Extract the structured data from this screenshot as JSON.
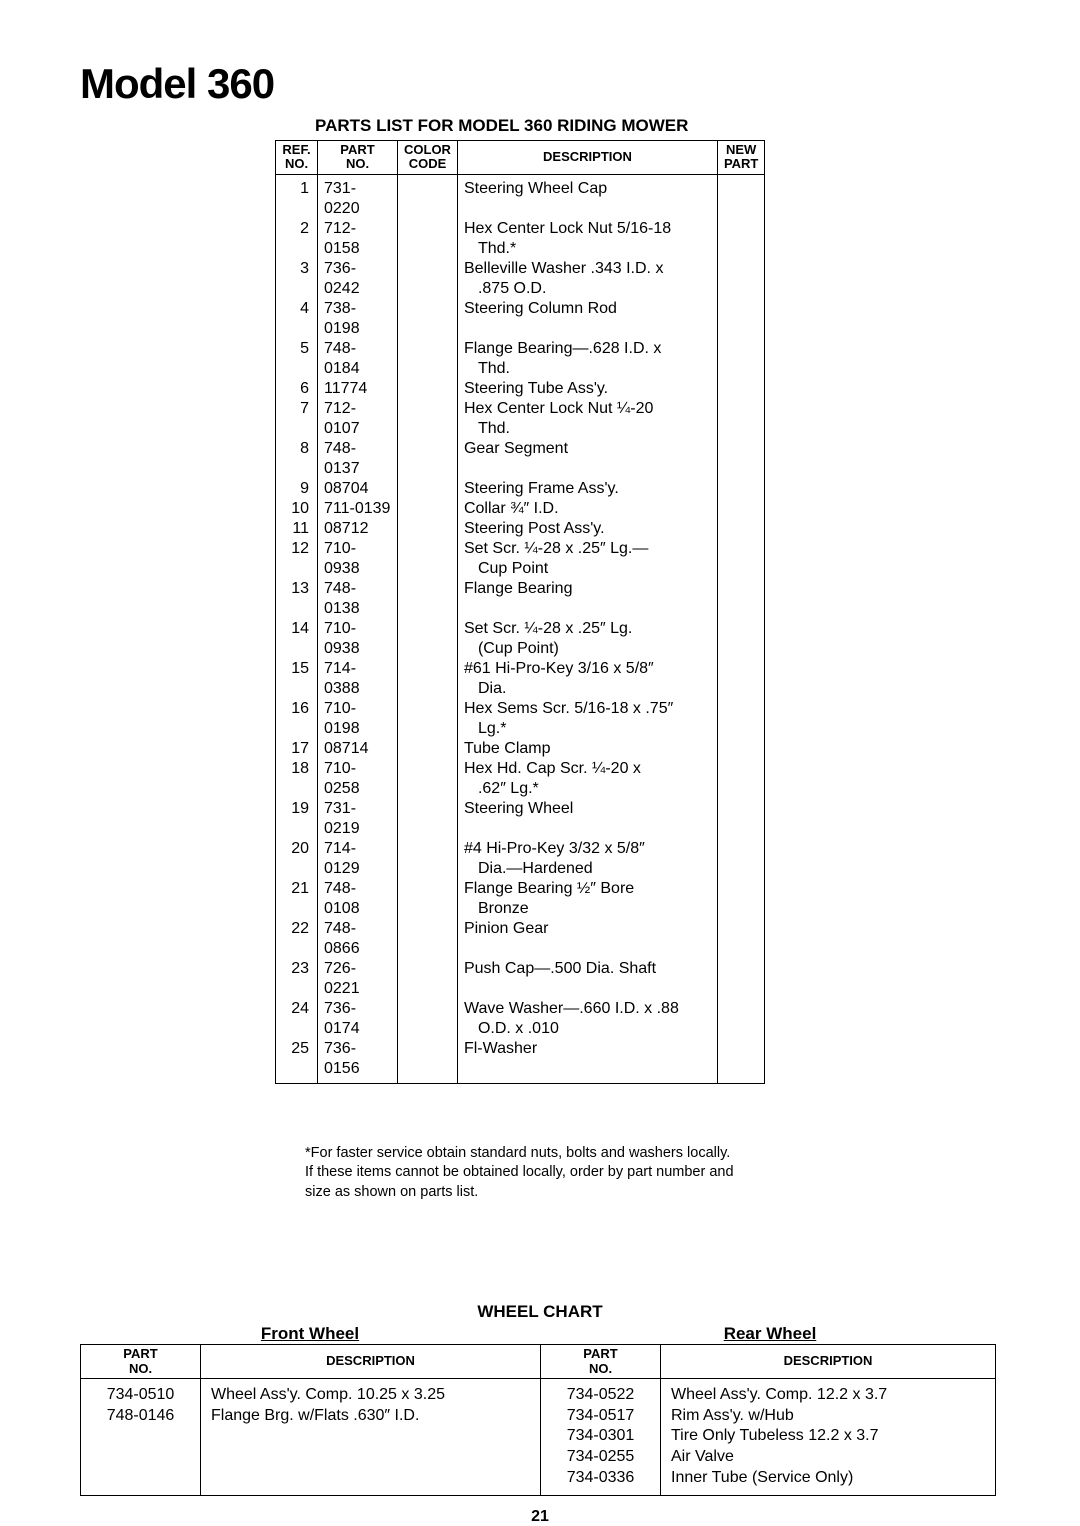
{
  "title": "Model 360",
  "subtitle": "PARTS LIST FOR MODEL 360 RIDING MOWER",
  "headers": {
    "ref": "REF.\nNO.",
    "part": "PART\nNO.",
    "color": "COLOR\nCODE",
    "desc": "DESCRIPTION",
    "new": "NEW\nPART"
  },
  "parts": [
    {
      "ref": "1",
      "part": "731-0220",
      "desc": "Steering Wheel Cap"
    },
    {
      "ref": "2",
      "part": "712-0158",
      "desc": "Hex Center Lock Nut 5/16-18",
      "cont": "Thd.*"
    },
    {
      "ref": "3",
      "part": "736-0242",
      "desc": "Belleville Washer .343 I.D. x",
      "cont": ".875 O.D."
    },
    {
      "ref": "4",
      "part": "738-0198",
      "desc": "Steering Column Rod"
    },
    {
      "ref": "5",
      "part": "748-0184",
      "desc": "Flange Bearing—.628 I.D. x",
      "cont": "Thd."
    },
    {
      "ref": "6",
      "part": "11774",
      "desc": "Steering Tube Ass'y."
    },
    {
      "ref": "7",
      "part": "712-0107",
      "desc": "Hex Center Lock Nut ¼-20",
      "cont": "Thd."
    },
    {
      "ref": "8",
      "part": "748-0137",
      "desc": "Gear Segment"
    },
    {
      "ref": "9",
      "part": "08704",
      "desc": "Steering Frame Ass'y."
    },
    {
      "ref": "10",
      "part": "711-0139",
      "desc": "Collar ¾″ I.D."
    },
    {
      "ref": "11",
      "part": "08712",
      "desc": "Steering Post Ass'y."
    },
    {
      "ref": "12",
      "part": "710-0938",
      "desc": "Set Scr. ¼-28 x .25″ Lg.—",
      "cont": "Cup Point"
    },
    {
      "ref": "13",
      "part": "748-0138",
      "desc": "Flange Bearing"
    },
    {
      "ref": "14",
      "part": "710-0938",
      "desc": "Set Scr. ¼-28 x .25″ Lg.",
      "cont": "(Cup Point)"
    },
    {
      "ref": "15",
      "part": "714-0388",
      "desc": "#61 Hi-Pro-Key 3/16 x 5/8″",
      "cont": "Dia."
    },
    {
      "ref": "16",
      "part": "710-0198",
      "desc": "Hex Sems Scr. 5/16-18 x .75″",
      "cont": "Lg.*"
    },
    {
      "ref": "17",
      "part": "08714",
      "desc": "Tube Clamp"
    },
    {
      "ref": "18",
      "part": "710-0258",
      "desc": "Hex Hd. Cap Scr. ¼-20 x",
      "cont": ".62″ Lg.*"
    },
    {
      "ref": "19",
      "part": "731-0219",
      "desc": "Steering Wheel"
    },
    {
      "ref": "20",
      "part": "714-0129",
      "desc": "#4 Hi-Pro-Key 3/32 x 5/8″",
      "cont": "Dia.—Hardened"
    },
    {
      "ref": "21",
      "part": "748-0108",
      "desc": "Flange Bearing ½″ Bore",
      "cont": "Bronze"
    },
    {
      "ref": "22",
      "part": "748-0866",
      "desc": "Pinion Gear"
    },
    {
      "ref": "23",
      "part": "726-0221",
      "desc": "Push Cap—.500 Dia. Shaft"
    },
    {
      "ref": "24",
      "part": "736-0174",
      "desc": "Wave Washer—.660 I.D. x .88",
      "cont": "O.D. x .010"
    },
    {
      "ref": "25",
      "part": "736-0156",
      "desc": "Fl-Washer"
    }
  ],
  "footnote": "*For faster service obtain standard nuts, bolts and washers locally. If these items cannot be obtained locally, order by part number and size as shown on parts list.",
  "wheelChart": {
    "title": "WHEEL CHART",
    "frontLabel": "Front Wheel",
    "rearLabel": "Rear Wheel",
    "headers": {
      "part": "PART\nNO.",
      "desc": "DESCRIPTION"
    },
    "front": {
      "parts": "734-0510\n748-0146",
      "desc": "Wheel Ass'y. Comp. 10.25 x 3.25\nFlange Brg. w/Flats .630″ I.D."
    },
    "rear": {
      "parts": "734-0522\n734-0517\n734-0301\n734-0255\n734-0336",
      "desc": "Wheel Ass'y. Comp. 12.2 x 3.7\nRim Ass'y. w/Hub\nTire Only Tubeless 12.2 x 3.7\nAir Valve\nInner Tube (Service Only)"
    }
  },
  "pageNumber": "21"
}
